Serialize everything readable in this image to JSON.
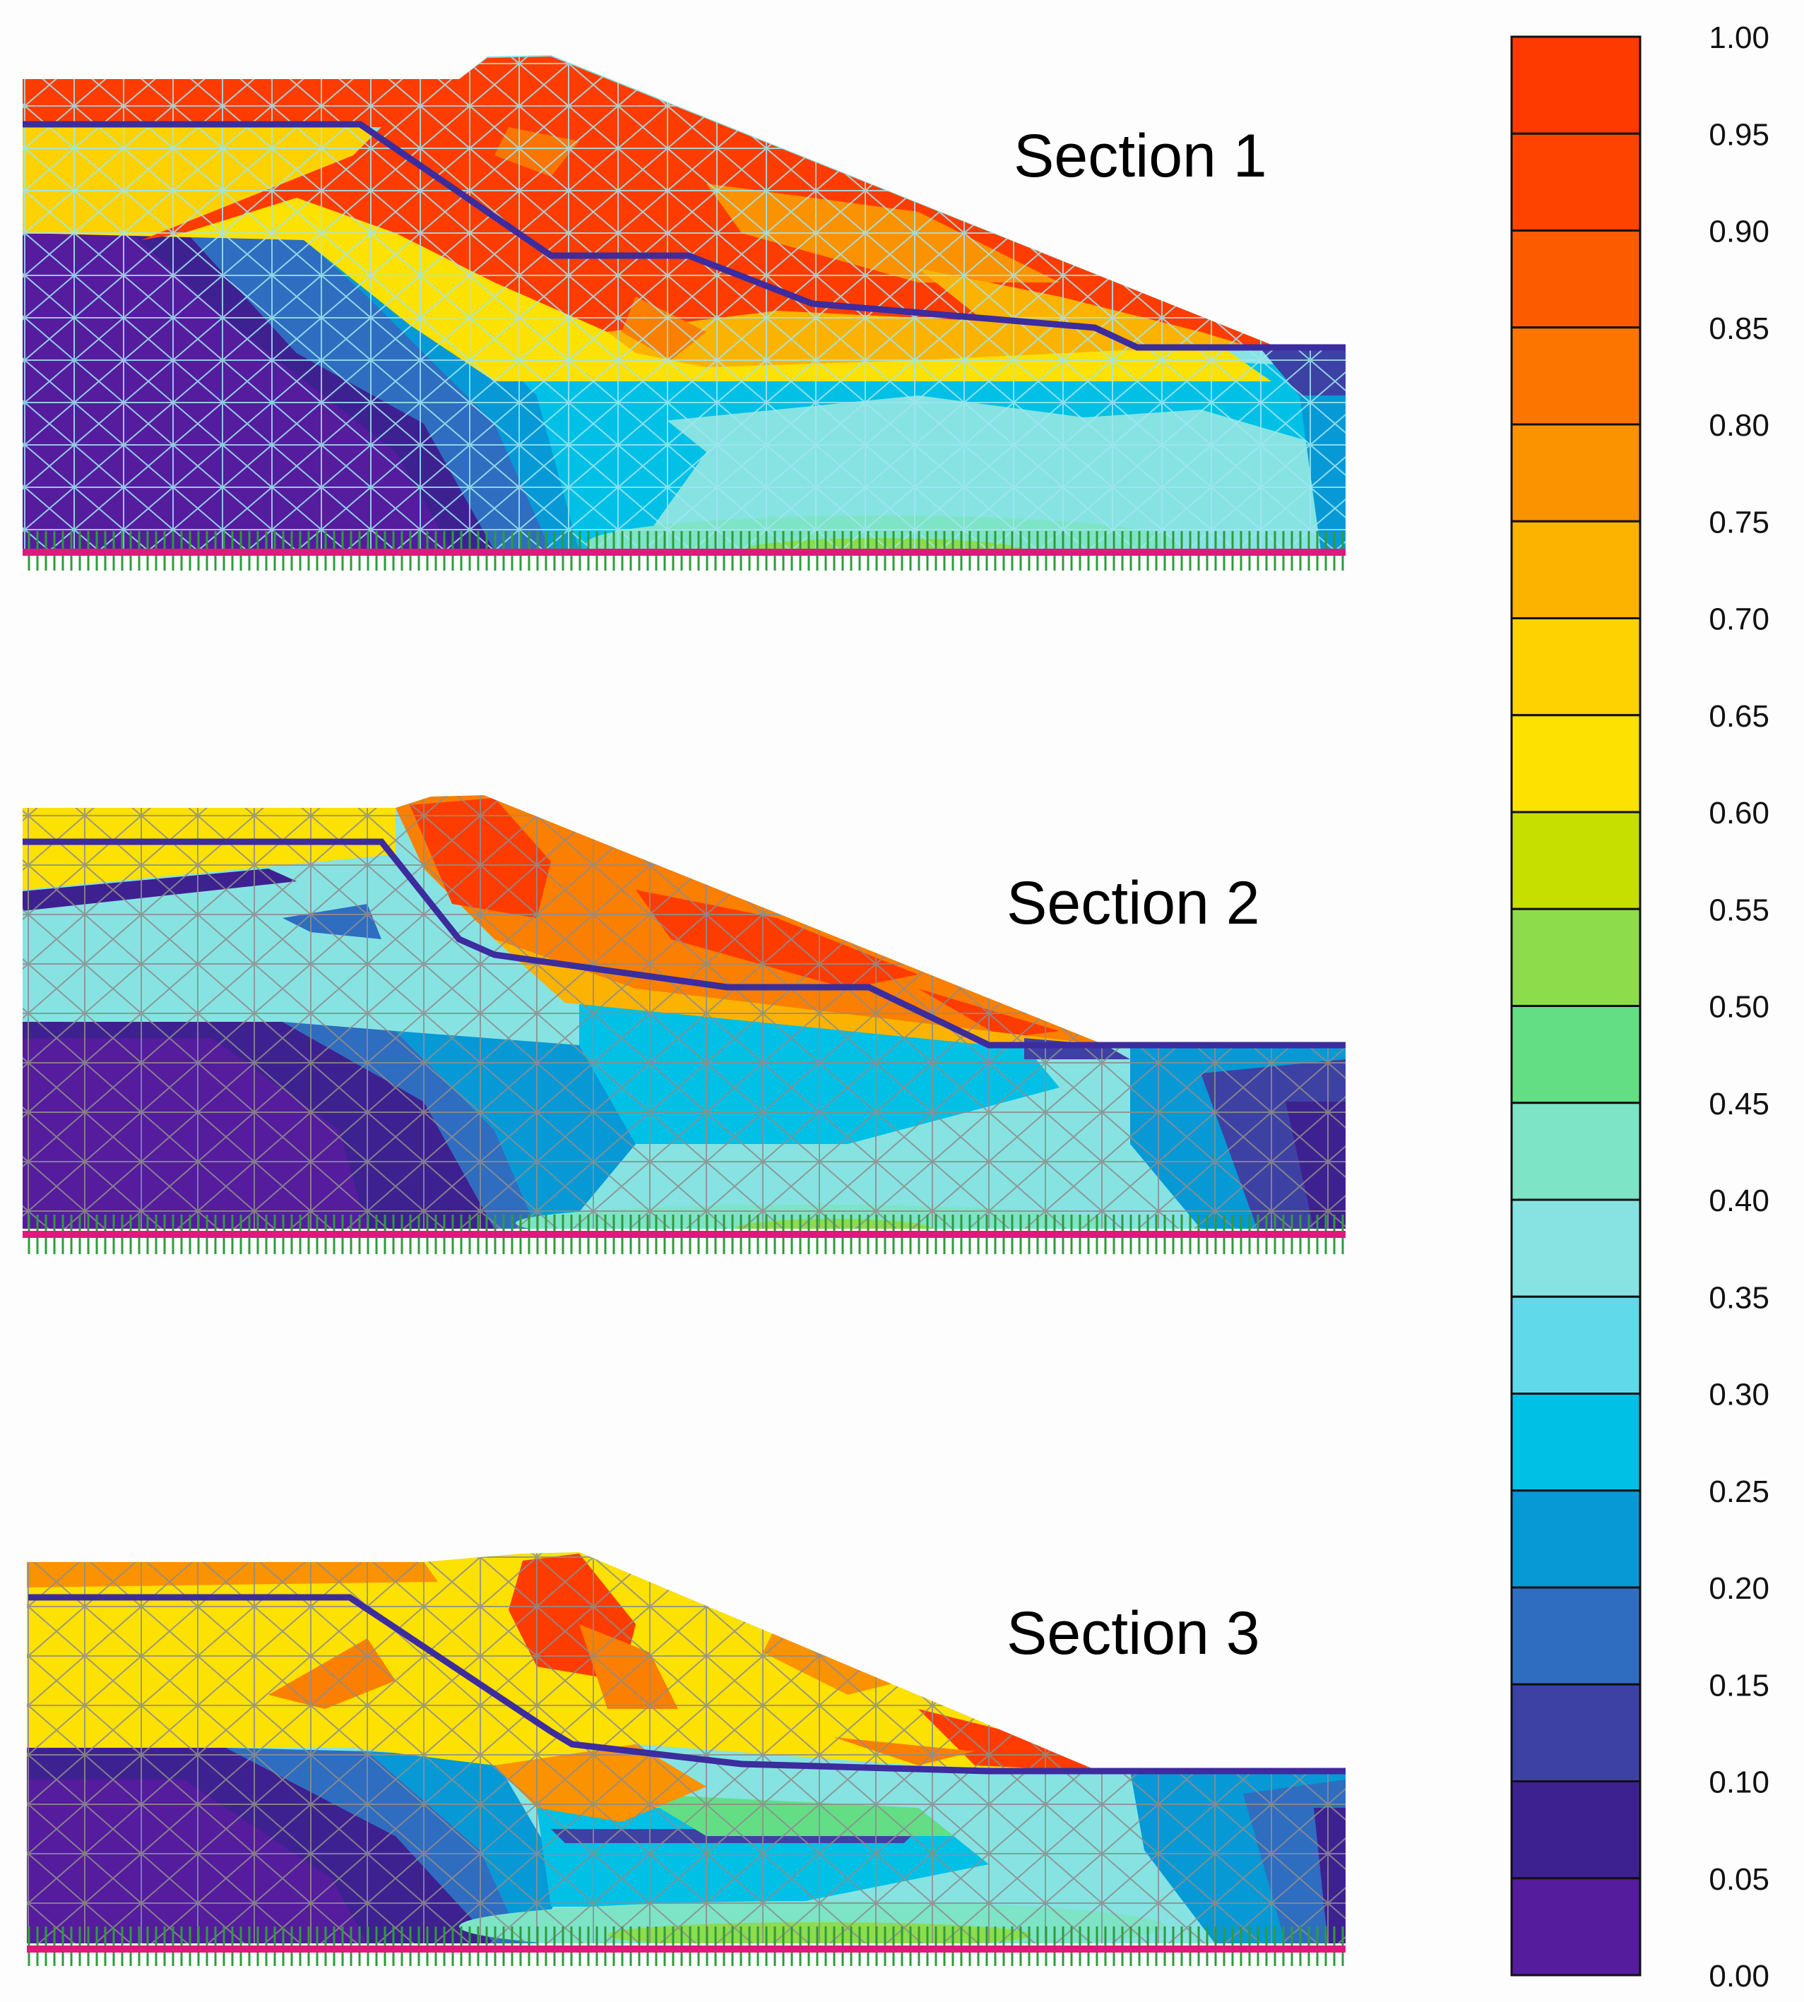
{
  "sections": [
    {
      "title": "Section 1"
    },
    {
      "title": "Section 2"
    },
    {
      "title": "Section 3"
    }
  ],
  "colorbar": {
    "ticks": [
      "1.00",
      "0.95",
      "0.90",
      "0.85",
      "0.80",
      "0.75",
      "0.70",
      "0.65",
      "0.60",
      "0.55",
      "0.50",
      "0.45",
      "0.40",
      "0.35",
      "0.30",
      "0.25",
      "0.20",
      "0.15",
      "0.10",
      "0.05",
      "0.00"
    ],
    "colors_top_to_bottom": [
      "#ff3a00",
      "#fe4300",
      "#fd5b00",
      "#fc7500",
      "#fb9200",
      "#fcb300",
      "#fdd200",
      "#fde100",
      "#c6df00",
      "#8ddc4c",
      "#63de84",
      "#7de4c6",
      "#86e3e2",
      "#60d9ea",
      "#00c0e6",
      "#0699d6",
      "#2f6dc0",
      "#3e41a4",
      "#3e2190",
      "#551c9e"
    ]
  },
  "palette": {
    "red": "#fe3c00",
    "orange": "#fb7f00",
    "amber": "#fcb000",
    "yellow": "#fde100",
    "green": "#8ddc4c",
    "mint": "#7de4c6",
    "light_cyan": "#86e3e2",
    "cyan": "#60d9ea",
    "deep_cyan": "#00c0e6",
    "blue": "#2f6dc0",
    "indigo": "#3e2190",
    "violet": "#551c9e",
    "phreatic_line": "#3c2c9e",
    "mesh_sec1": "#9fe6f0",
    "mesh_sec23": "#8d8d8d",
    "base_line": "#e0187c",
    "fixity": "#2f9b3c"
  }
}
